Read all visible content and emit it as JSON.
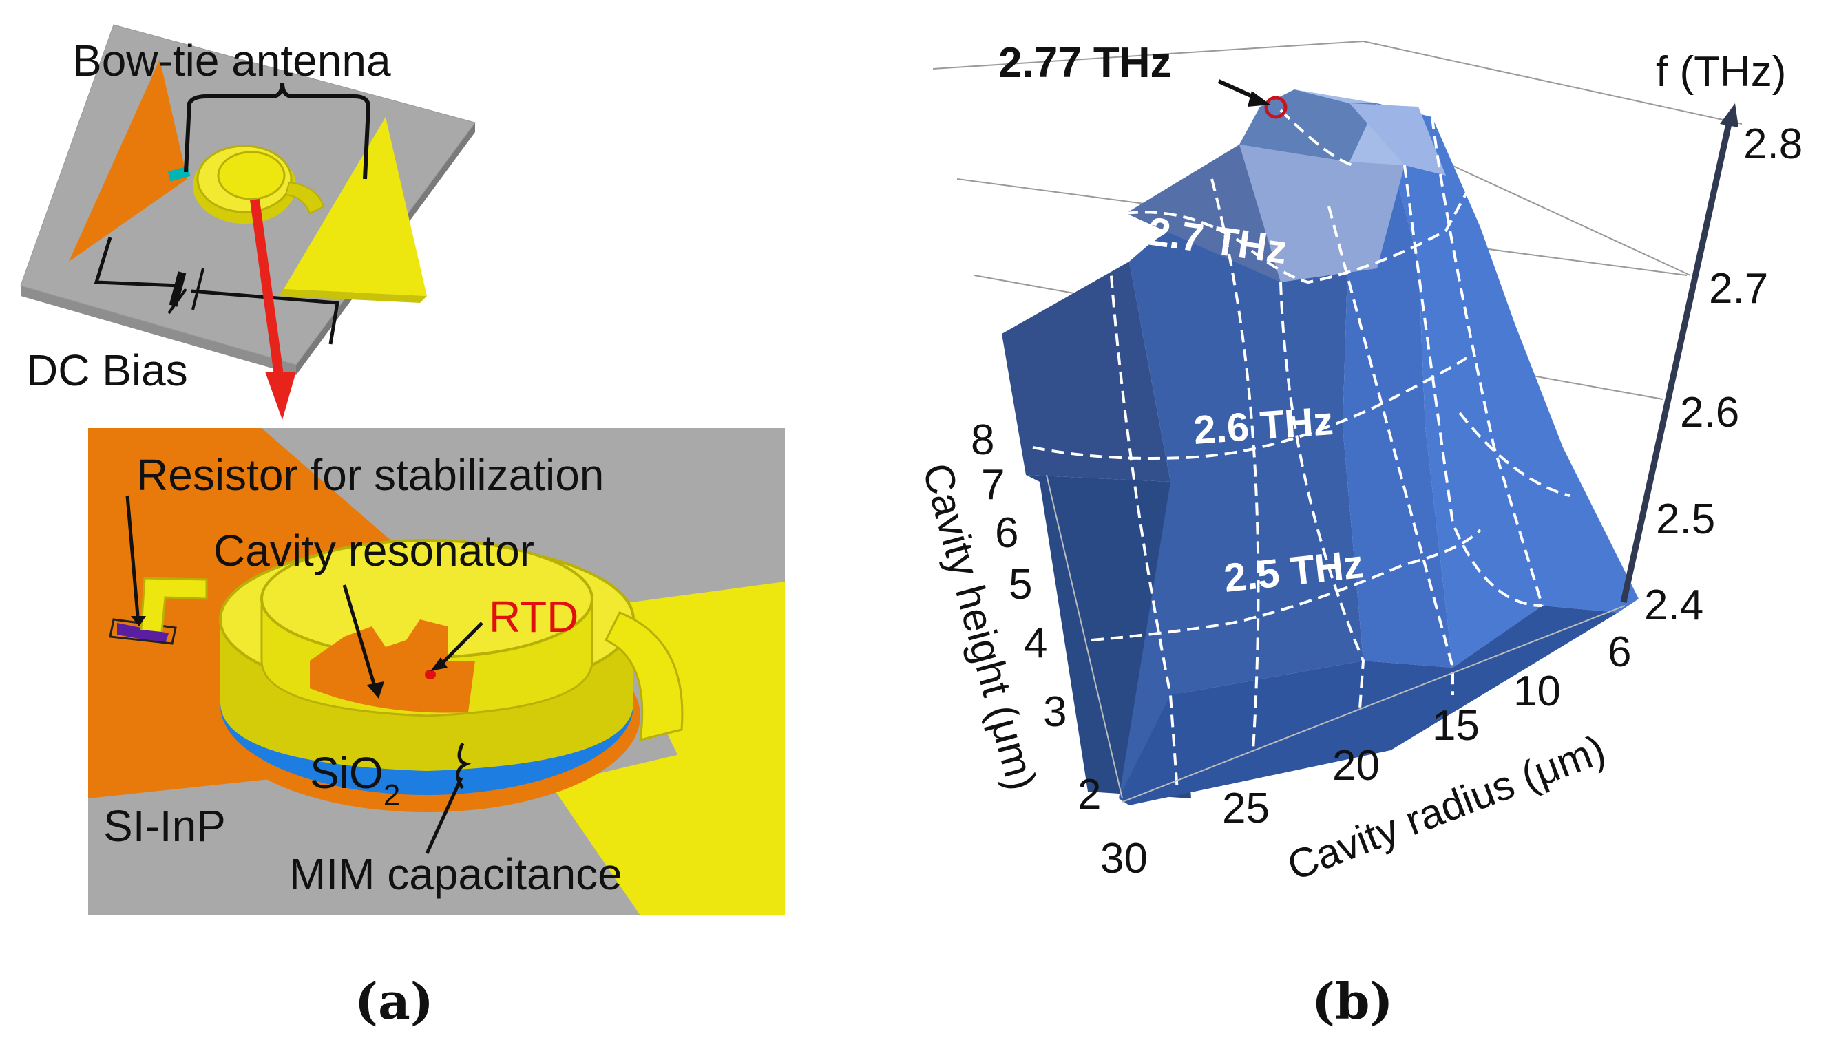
{
  "panel_a": {
    "caption": "(a)",
    "top": {
      "antenna_label": "Bow-tie antenna",
      "bias_label": "DC Bias"
    },
    "bottom": {
      "resistor_label": "Resistor for stabilization",
      "cavity_label": "Cavity resonator",
      "rtd_label": "RTD",
      "sio2_prefix": "SiO",
      "sio2_sub": "2",
      "substrate_label": "SI-InP",
      "mim_label": "MIM capacitance"
    },
    "colors": {
      "orange": "#E87A0C",
      "yellow": "#EDE60F",
      "gray": "#A9A9A9",
      "blue": "#1E7DE0",
      "rtd_red": "#E01010",
      "arrow_red": "#E8231B"
    }
  },
  "panel_b": {
    "caption": "(b)",
    "peak_label": "2.77 THz",
    "colors": {
      "surface_dark": "#2E5497",
      "surface_mid": "#3F6DC0",
      "surface_light": "#9DB4E6",
      "axis": "#2F3A52",
      "peak_marker": "#C8141E"
    }
  },
  "chart_data": {
    "type": "surface3d",
    "title": "",
    "zlabel": "f (THz)",
    "xlabel": "Cavity radius (μm)",
    "ylabel": "Cavity height (μm)",
    "x_ticks": [
      "6",
      "10",
      "15",
      "20",
      "25",
      "30"
    ],
    "y_ticks": [
      "2",
      "3",
      "4",
      "5",
      "6",
      "7",
      "8"
    ],
    "z_ticks": [
      "2.4",
      "2.5",
      "2.6",
      "2.7",
      "2.8"
    ],
    "zlim": [
      2.4,
      2.8
    ],
    "contours": [
      {
        "value": 2.5,
        "label": "2.5 THz"
      },
      {
        "value": 2.6,
        "label": "2.6 THz"
      },
      {
        "value": 2.7,
        "label": "2.7 THz"
      }
    ],
    "peak": {
      "value": 2.77,
      "label": "2.77 THz"
    }
  }
}
